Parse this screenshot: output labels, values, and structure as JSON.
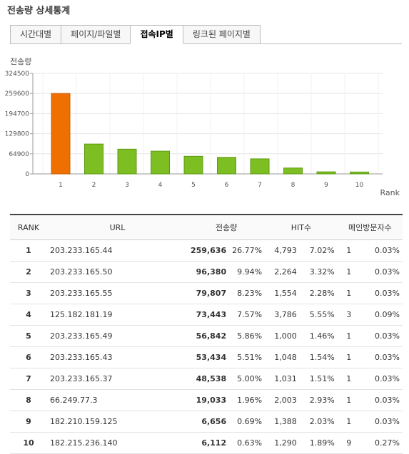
{
  "page_title": "전송량 상세통계",
  "tabs": [
    {
      "label": "시간대별",
      "active": false
    },
    {
      "label": "페이지/파일별",
      "active": false
    },
    {
      "label": "접속IP별",
      "active": true
    },
    {
      "label": "링크된 페이지별",
      "active": false
    }
  ],
  "colors": {
    "highlight_bar": "#ee7000",
    "bar": "#7dbf22",
    "bar_edge": "#5d9a14"
  },
  "chart_data": {
    "type": "bar",
    "ylabel": "전송량",
    "xlabel": "Rank",
    "categories": [
      "1",
      "2",
      "3",
      "4",
      "5",
      "6",
      "7",
      "8",
      "9",
      "10"
    ],
    "values": [
      259636,
      96380,
      79807,
      73443,
      56842,
      53434,
      48538,
      19033,
      6656,
      6112
    ],
    "ylim": [
      0,
      324500
    ],
    "yticks": [
      0,
      64900,
      129800,
      194700,
      259600,
      324500
    ],
    "ytick_labels": [
      "0",
      "64900",
      "129800",
      "194700",
      "259600",
      "324500"
    ],
    "grid": true
  },
  "table": {
    "headers": {
      "rank": "RANK",
      "url": "URL",
      "traffic": "전송량",
      "hits": "HIT수",
      "main": "메인방문자수"
    },
    "rows": [
      {
        "rank": "1",
        "url": "203.233.165.44",
        "traffic": "259,636",
        "traffic_pct": "26.77%",
        "hits": "4,793",
        "hits_pct": "7.02%",
        "main": "1",
        "main_pct": "0.03%"
      },
      {
        "rank": "2",
        "url": "203.233.165.50",
        "traffic": "96,380",
        "traffic_pct": "9.94%",
        "hits": "2,264",
        "hits_pct": "3.32%",
        "main": "1",
        "main_pct": "0.03%"
      },
      {
        "rank": "3",
        "url": "203.233.165.55",
        "traffic": "79,807",
        "traffic_pct": "8.23%",
        "hits": "1,554",
        "hits_pct": "2.28%",
        "main": "1",
        "main_pct": "0.03%"
      },
      {
        "rank": "4",
        "url": "125.182.181.19",
        "traffic": "73,443",
        "traffic_pct": "7.57%",
        "hits": "3,786",
        "hits_pct": "5.55%",
        "main": "3",
        "main_pct": "0.09%"
      },
      {
        "rank": "5",
        "url": "203.233.165.49",
        "traffic": "56,842",
        "traffic_pct": "5.86%",
        "hits": "1,000",
        "hits_pct": "1.46%",
        "main": "1",
        "main_pct": "0.03%"
      },
      {
        "rank": "6",
        "url": "203.233.165.43",
        "traffic": "53,434",
        "traffic_pct": "5.51%",
        "hits": "1,048",
        "hits_pct": "1.54%",
        "main": "1",
        "main_pct": "0.03%"
      },
      {
        "rank": "7",
        "url": "203.233.165.37",
        "traffic": "48,538",
        "traffic_pct": "5.00%",
        "hits": "1,031",
        "hits_pct": "1.51%",
        "main": "1",
        "main_pct": "0.03%"
      },
      {
        "rank": "8",
        "url": "66.249.77.3",
        "traffic": "19,033",
        "traffic_pct": "1.96%",
        "hits": "2,003",
        "hits_pct": "2.93%",
        "main": "1",
        "main_pct": "0.03%"
      },
      {
        "rank": "9",
        "url": "182.210.159.125",
        "traffic": "6,656",
        "traffic_pct": "0.69%",
        "hits": "1,388",
        "hits_pct": "2.03%",
        "main": "1",
        "main_pct": "0.03%"
      },
      {
        "rank": "10",
        "url": "182.215.236.140",
        "traffic": "6,112",
        "traffic_pct": "0.63%",
        "hits": "1,290",
        "hits_pct": "1.89%",
        "main": "9",
        "main_pct": "0.27%"
      }
    ]
  }
}
